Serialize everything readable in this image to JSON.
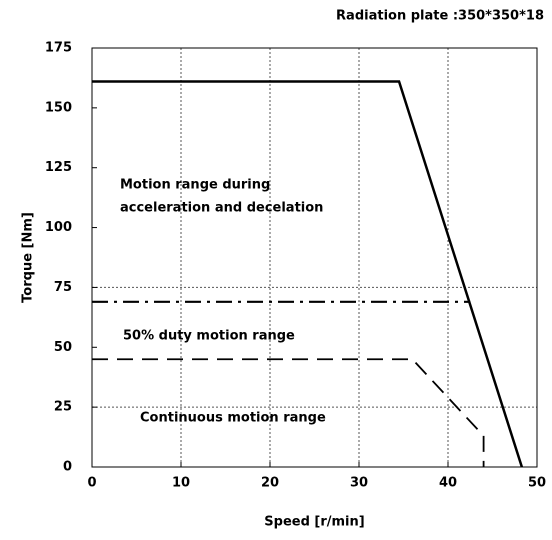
{
  "chart_data": {
    "type": "line",
    "subtitle": "Radiation plate :350*350*18",
    "xlabel": "Speed [r/min]",
    "ylabel": "Torque [Nm]",
    "xlim": [
      0,
      50
    ],
    "ylim": [
      0,
      175
    ],
    "xticks": [
      0,
      10,
      20,
      30,
      40,
      50
    ],
    "yticks": [
      0,
      25,
      50,
      75,
      100,
      125,
      150,
      175
    ],
    "xgrid": [
      10,
      20,
      30,
      40
    ],
    "ygrid": [
      25,
      75
    ],
    "annotations": [
      [
        "Motion range during",
        "acceleration and decelation"
      ],
      [
        "50% duty motion range"
      ],
      [
        "Continuous motion range"
      ]
    ],
    "series": [
      {
        "color": "#000000",
        "style": "solid",
        "x": [
          0,
          34.5,
          48.3
        ],
        "values": [
          161,
          161,
          0
        ]
      },
      {
        "color": "#000000",
        "style": "dashdot",
        "x": [
          0,
          42.5
        ],
        "values": [
          69,
          69
        ]
      },
      {
        "color": "#000000",
        "style": "dashed",
        "x": [
          0,
          36,
          44,
          44
        ],
        "values": [
          45,
          45,
          13,
          0
        ]
      }
    ]
  }
}
